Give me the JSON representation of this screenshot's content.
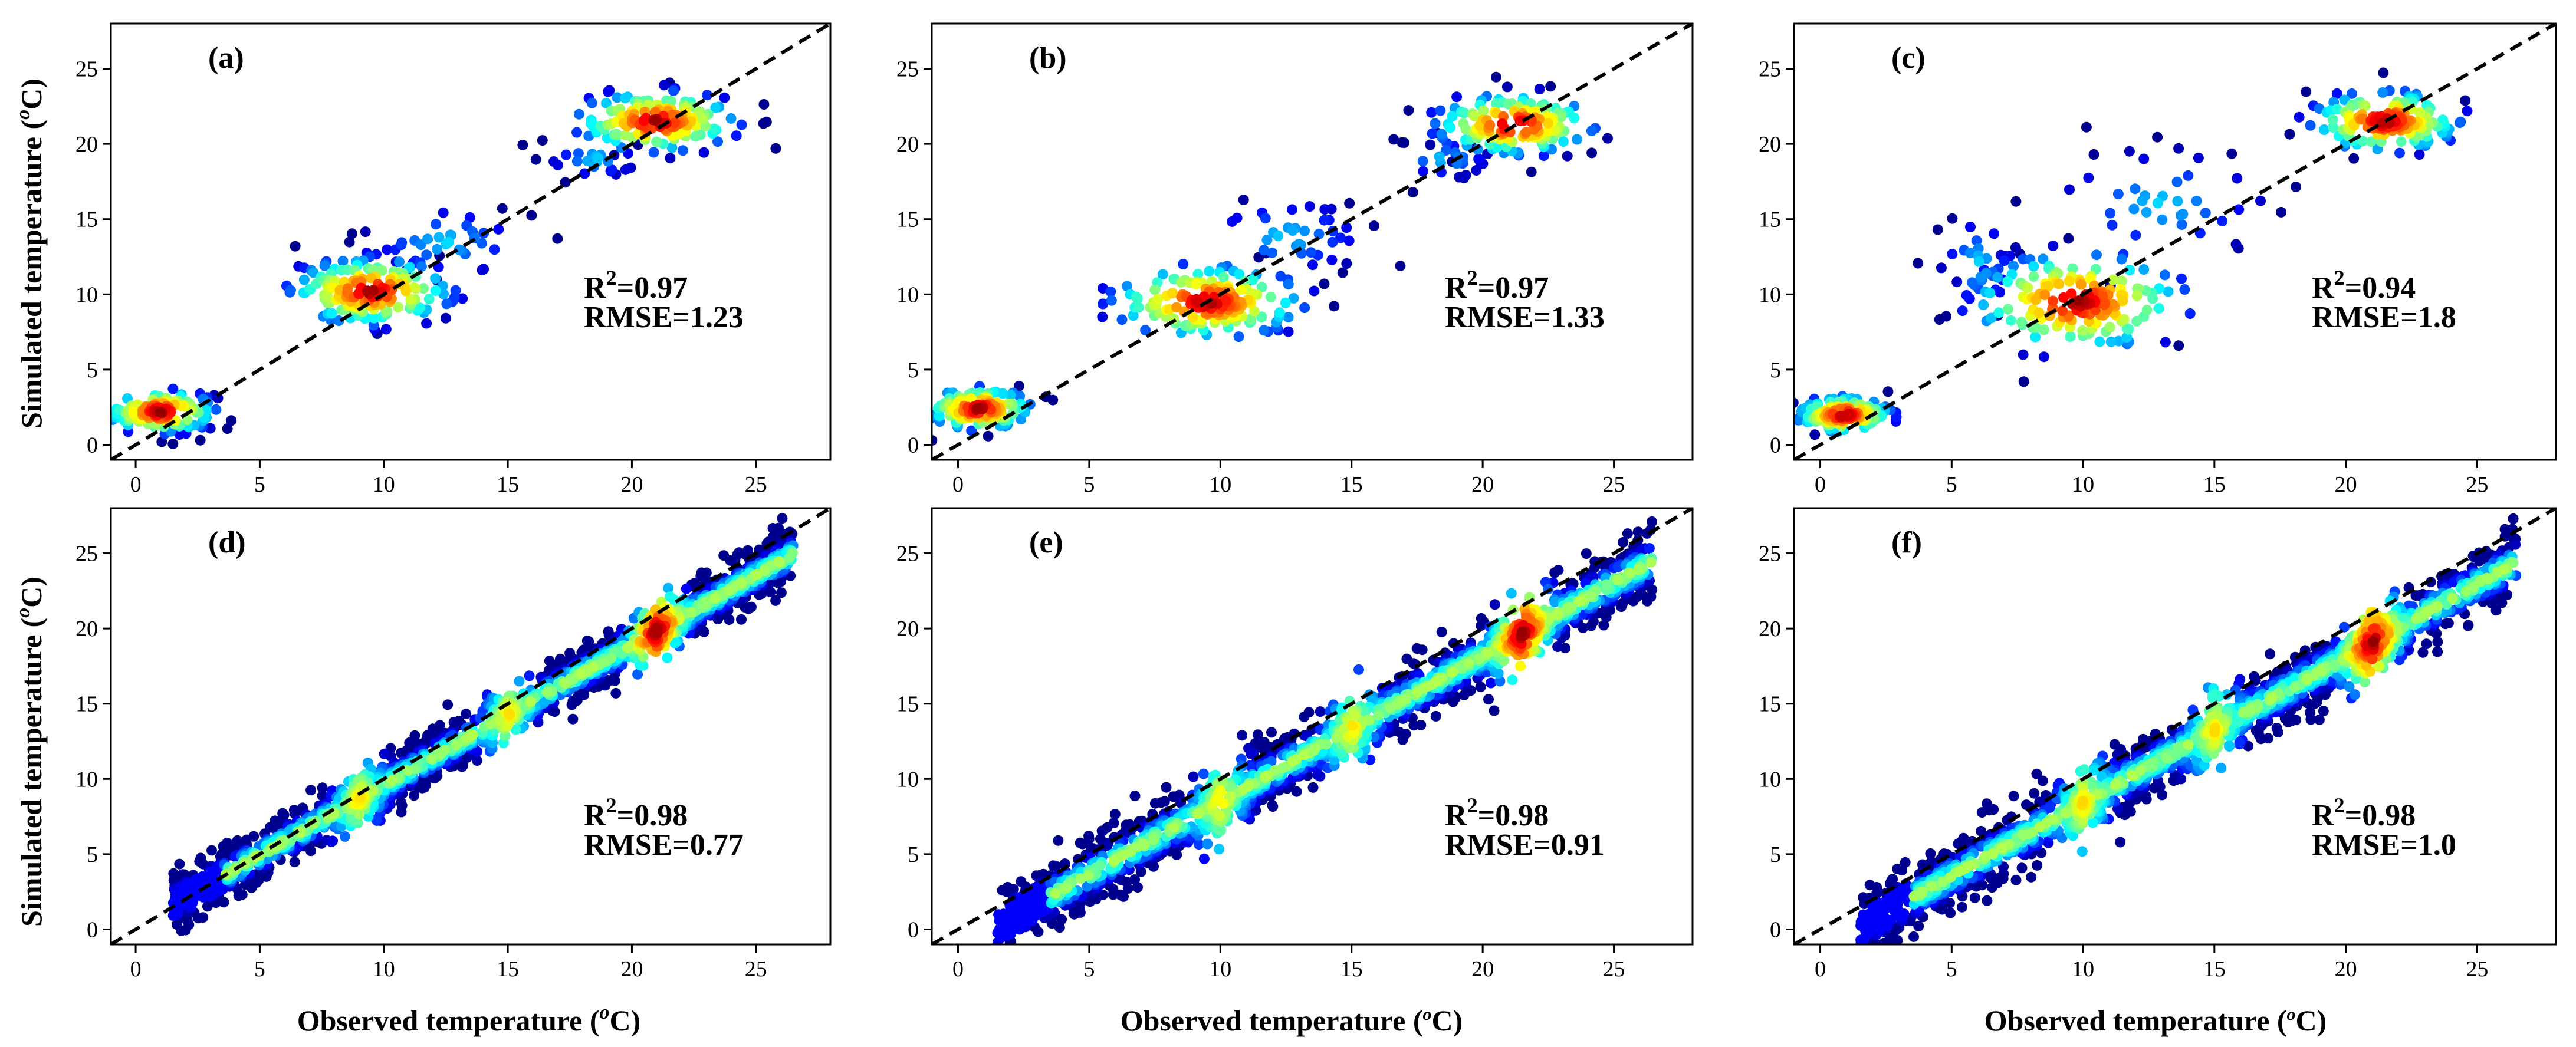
{
  "figure": {
    "y_title": "Simulated temperature (",
    "x_title": "Observed temperature (",
    "unit_sup": "o",
    "unit_tail": "C)"
  },
  "colormap": [
    "#00008f",
    "#0000ff",
    "#0080ff",
    "#00ffff",
    "#80ff80",
    "#ffff00",
    "#ff8000",
    "#ff0000",
    "#800000"
  ],
  "chart_data": [
    {
      "type": "scatter",
      "id": "a",
      "label": "(a)",
      "r2_label": "R",
      "r2_sup": "2",
      "r2_value": "=0.97",
      "rmse_text": "RMSE=1.23",
      "xlim": [
        -1,
        28
      ],
      "ylim": [
        -1,
        28
      ],
      "xticks": [
        "0",
        "5",
        "10",
        "15",
        "20",
        "25"
      ],
      "yticks": [
        "0",
        "5",
        "10",
        "15",
        "20",
        "25"
      ],
      "one_to_one": true,
      "clusters": [
        {
          "cx": 1.0,
          "cy": 2.2,
          "sx": 1.1,
          "sy": 0.7,
          "n": 140,
          "hot": true
        },
        {
          "cx": 9.5,
          "cy": 10.2,
          "sx": 1.6,
          "sy": 1.1,
          "n": 170,
          "hot": true
        },
        {
          "cx": 21.0,
          "cy": 21.5,
          "sx": 1.6,
          "sy": 1.0,
          "n": 150,
          "hot": true
        },
        {
          "cx": 12.5,
          "cy": 13.5,
          "sx": 1.8,
          "sy": 1.3,
          "n": 40,
          "hot": false
        },
        {
          "cx": 18.5,
          "cy": 19.0,
          "sx": 1.0,
          "sy": 0.7,
          "n": 25,
          "hot": false
        }
      ]
    },
    {
      "type": "scatter",
      "id": "b",
      "label": "(b)",
      "r2_label": "R",
      "r2_sup": "2",
      "r2_value": "=0.97",
      "rmse_text": "RMSE=1.33",
      "xlim": [
        -1,
        28
      ],
      "ylim": [
        -1,
        28
      ],
      "xticks": [
        "0",
        "5",
        "10",
        "15",
        "20",
        "25"
      ],
      "yticks": [
        "0",
        "5",
        "10",
        "15",
        "20",
        "25"
      ],
      "one_to_one": true,
      "clusters": [
        {
          "cx": 0.8,
          "cy": 2.4,
          "sx": 1.0,
          "sy": 0.7,
          "n": 140,
          "hot": true
        },
        {
          "cx": 9.5,
          "cy": 9.5,
          "sx": 1.8,
          "sy": 1.2,
          "n": 170,
          "hot": true
        },
        {
          "cx": 21.2,
          "cy": 21.3,
          "sx": 1.5,
          "sy": 1.0,
          "n": 150,
          "hot": true
        },
        {
          "cx": 12.5,
          "cy": 13.8,
          "sx": 1.7,
          "sy": 1.4,
          "n": 40,
          "hot": false
        },
        {
          "cx": 18.5,
          "cy": 19.0,
          "sx": 1.0,
          "sy": 0.7,
          "n": 25,
          "hot": false
        }
      ]
    },
    {
      "type": "scatter",
      "id": "c",
      "label": "(c)",
      "r2_label": "R",
      "r2_sup": "2",
      "r2_value": "=0.94",
      "rmse_text": "RMSE=1.8",
      "xlim": [
        -1,
        28
      ],
      "ylim": [
        -1,
        28
      ],
      "xticks": [
        "0",
        "5",
        "10",
        "15",
        "20",
        "25"
      ],
      "yticks": [
        "0",
        "5",
        "10",
        "15",
        "20",
        "25"
      ],
      "one_to_one": true,
      "clusters": [
        {
          "cx": 0.9,
          "cy": 2.0,
          "sx": 0.9,
          "sy": 0.6,
          "n": 140,
          "hot": true
        },
        {
          "cx": 9.8,
          "cy": 9.5,
          "sx": 2.0,
          "sy": 1.6,
          "n": 170,
          "hot": true
        },
        {
          "cx": 21.5,
          "cy": 21.5,
          "sx": 1.4,
          "sy": 1.0,
          "n": 150,
          "hot": true
        },
        {
          "cx": 6.0,
          "cy": 12.0,
          "sx": 0.8,
          "sy": 1.8,
          "n": 35,
          "hot": false
        },
        {
          "cx": 13.0,
          "cy": 16.0,
          "sx": 2.2,
          "sy": 2.0,
          "n": 40,
          "hot": false
        }
      ]
    },
    {
      "type": "scatter",
      "id": "d",
      "label": "(d)",
      "r2_label": "R",
      "r2_sup": "2",
      "r2_value": "=0.98",
      "rmse_text": "RMSE=0.77",
      "xlim": [
        -1,
        28
      ],
      "ylim": [
        -1,
        28
      ],
      "xticks": [
        "0",
        "5",
        "10",
        "15",
        "20",
        "25"
      ],
      "yticks": [
        "0",
        "5",
        "10",
        "15",
        "20",
        "25"
      ],
      "one_to_one": true,
      "band": {
        "x_start": 1.5,
        "x_end": 26.5,
        "slope": 0.93,
        "intercept": 0.3,
        "width": 0.9,
        "hot_x": 21.0,
        "warm_x": [
          9.0,
          15.0
        ]
      }
    },
    {
      "type": "scatter",
      "id": "e",
      "label": "(e)",
      "r2_label": "R",
      "r2_sup": "2",
      "r2_value": "=0.98",
      "rmse_text": "RMSE=0.91",
      "xlim": [
        -1,
        28
      ],
      "ylim": [
        -1,
        28
      ],
      "xticks": [
        "0",
        "5",
        "10",
        "15",
        "20",
        "25"
      ],
      "yticks": [
        "0",
        "5",
        "10",
        "15",
        "20",
        "25"
      ],
      "one_to_one": true,
      "band": {
        "x_start": 1.5,
        "x_end": 26.5,
        "slope": 0.97,
        "intercept": -1.2,
        "width": 1.1,
        "hot_x": 21.5,
        "warm_x": [
          10.0,
          15.0
        ]
      }
    },
    {
      "type": "scatter",
      "id": "f",
      "label": "(f)",
      "r2_label": "R",
      "r2_sup": "2",
      "r2_value": "=0.98",
      "rmse_text": "RMSE=1.0",
      "xlim": [
        -1,
        28
      ],
      "ylim": [
        -1,
        28
      ],
      "xticks": [
        "0",
        "5",
        "10",
        "15",
        "20",
        "25"
      ],
      "yticks": [
        "0",
        "5",
        "10",
        "15",
        "20",
        "25"
      ],
      "one_to_one": true,
      "band": {
        "x_start": 1.5,
        "x_end": 26.5,
        "slope": 0.97,
        "intercept": -1.3,
        "width": 1.1,
        "hot_x": 21.0,
        "warm_x": [
          10.0,
          15.0
        ]
      }
    }
  ]
}
